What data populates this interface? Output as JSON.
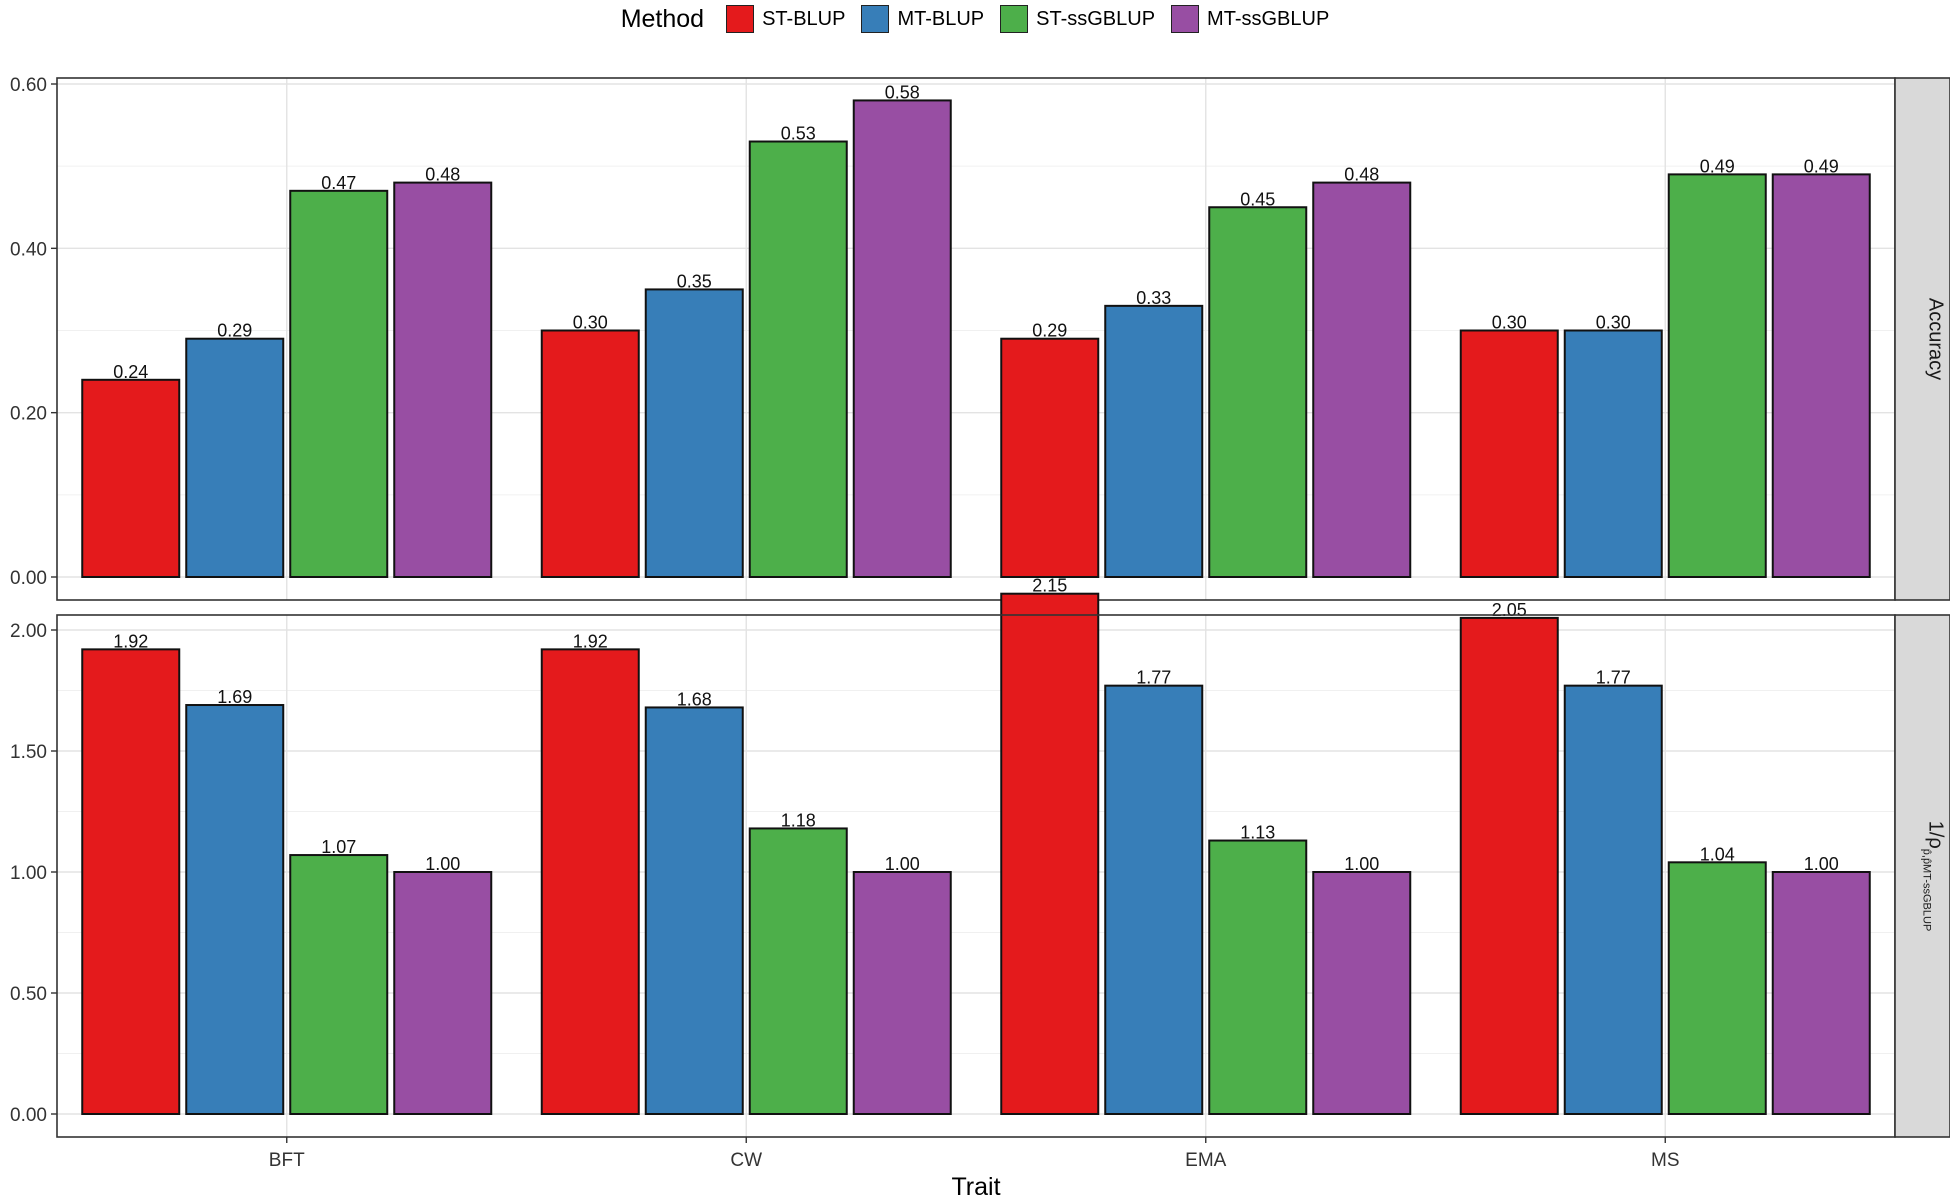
{
  "chart_data": {
    "type": "bar",
    "layout": "faceted-vertical",
    "xlabel": "Trait",
    "categories": [
      "BFT",
      "CW",
      "EMA",
      "MS"
    ],
    "legend": {
      "title": "Method",
      "position": "top",
      "entries": [
        {
          "name": "ST-BLUP",
          "color": "#E41A1C"
        },
        {
          "name": "MT-BLUP",
          "color": "#377EB8"
        },
        {
          "name": "ST-ssGBLUP",
          "color": "#4DAF4A"
        },
        {
          "name": "MT-ssGBLUP",
          "color": "#984EA3"
        }
      ]
    },
    "panels": [
      {
        "strip_label": "Accuracy",
        "ylim": [
          0,
          0.6
        ],
        "yticks": [
          "0.00",
          "0.20",
          "0.40",
          "0.60"
        ],
        "series": [
          {
            "name": "ST-BLUP",
            "values": [
              0.24,
              0.3,
              0.29,
              0.3
            ],
            "labels": [
              "0.24",
              "0.30",
              "0.29",
              "0.30"
            ]
          },
          {
            "name": "MT-BLUP",
            "values": [
              0.29,
              0.35,
              0.33,
              0.3
            ],
            "labels": [
              "0.29",
              "0.35",
              "0.33",
              "0.30"
            ]
          },
          {
            "name": "ST-ssGBLUP",
            "values": [
              0.47,
              0.53,
              0.45,
              0.49
            ],
            "labels": [
              "0.47",
              "0.53",
              "0.45",
              "0.49"
            ]
          },
          {
            "name": "MT-ssGBLUP",
            "values": [
              0.48,
              0.58,
              0.48,
              0.49
            ],
            "labels": [
              "0.48",
              "0.58",
              "0.48",
              "0.49"
            ]
          }
        ]
      },
      {
        "strip_label": "1/ρ",
        "strip_subscript": "p̂,p̂MT-ssGBLUP",
        "ylim": [
          0,
          2.0
        ],
        "yticks": [
          "0.00",
          "0.50",
          "1.00",
          "1.50",
          "2.00"
        ],
        "series": [
          {
            "name": "ST-BLUP",
            "values": [
              1.92,
              1.92,
              2.15,
              2.05
            ],
            "labels": [
              "1.92",
              "1.92",
              "2.15",
              "2.05"
            ]
          },
          {
            "name": "MT-BLUP",
            "values": [
              1.69,
              1.68,
              1.77,
              1.77
            ],
            "labels": [
              "1.69",
              "1.68",
              "1.77",
              "1.77"
            ]
          },
          {
            "name": "ST-ssGBLUP",
            "values": [
              1.07,
              1.18,
              1.13,
              1.04
            ],
            "labels": [
              "1.07",
              "1.18",
              "1.13",
              "1.04"
            ]
          },
          {
            "name": "MT-ssGBLUP",
            "values": [
              1.0,
              1.0,
              1.0,
              1.0
            ],
            "labels": [
              "1.00",
              "1.00",
              "1.00",
              "1.00"
            ]
          }
        ]
      }
    ]
  }
}
